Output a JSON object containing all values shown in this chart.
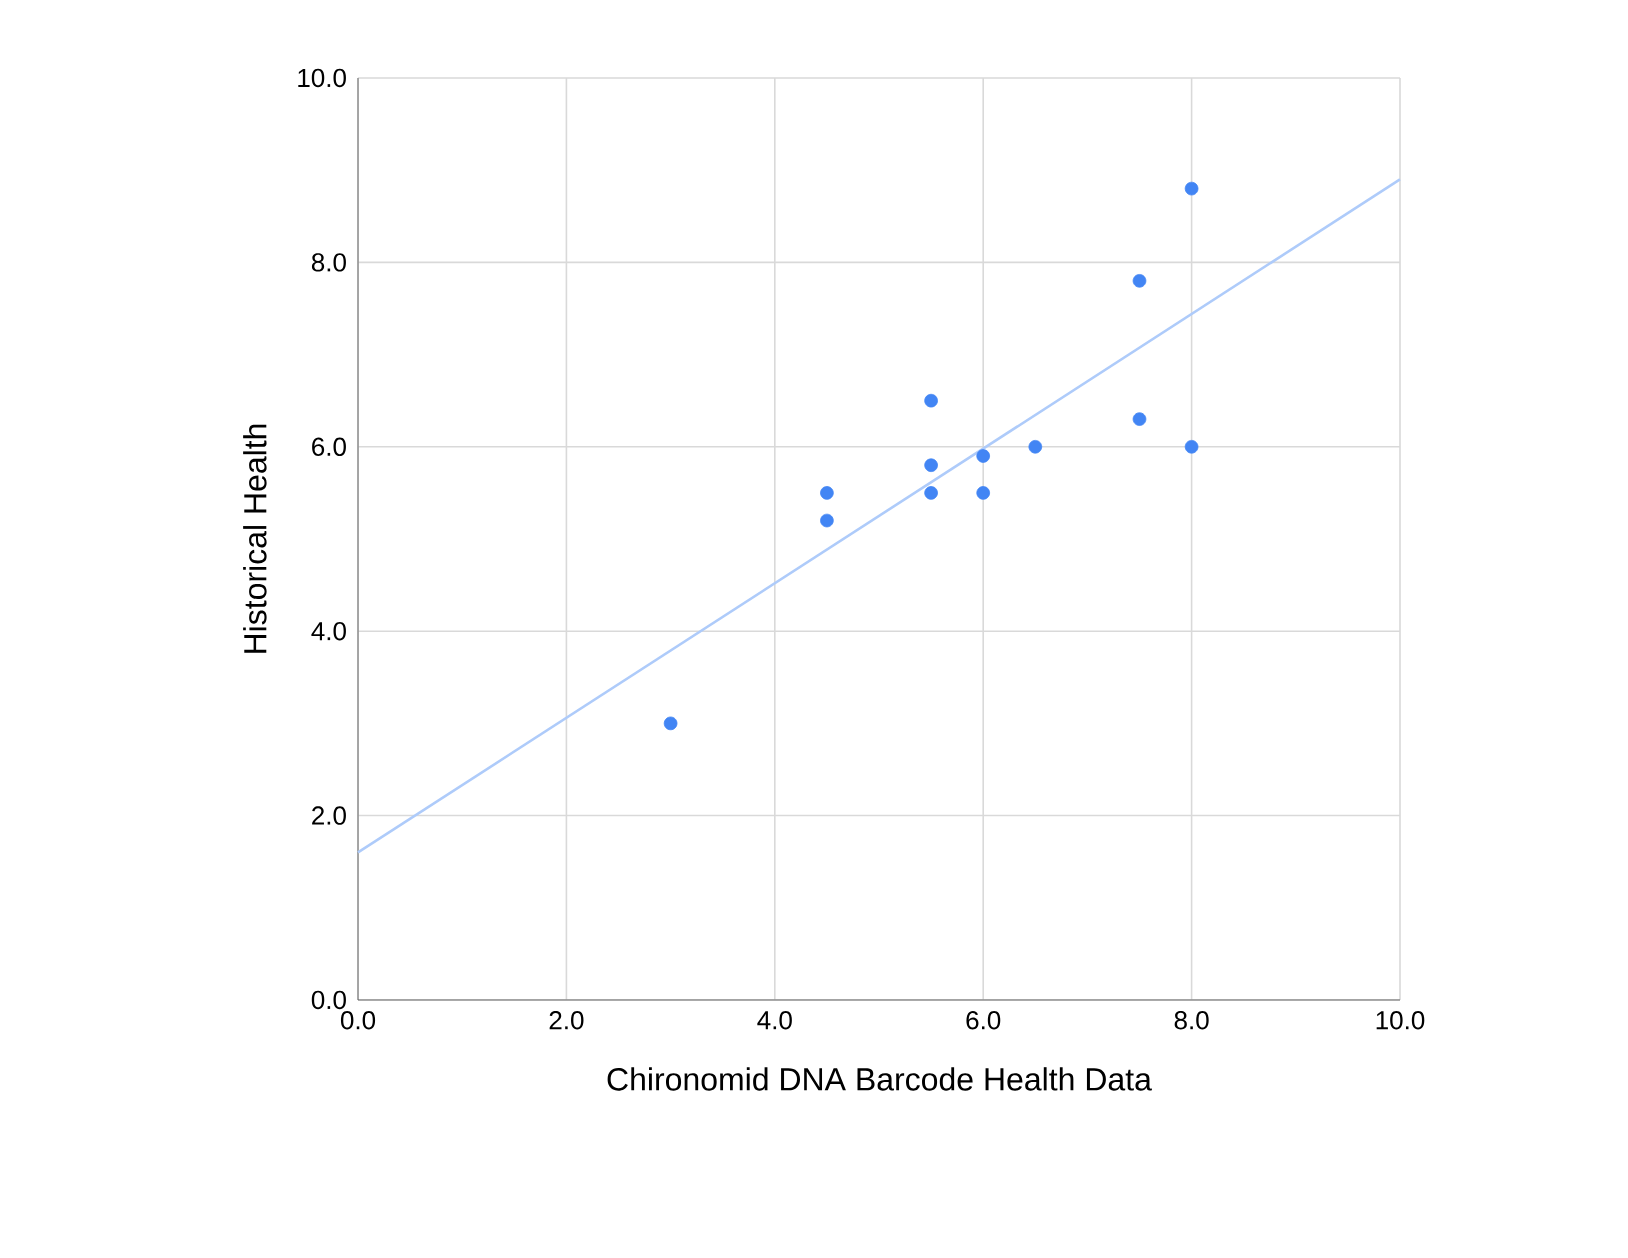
{
  "chart_data": {
    "type": "scatter",
    "xlabel": "Chironomid DNA Barcode Health Data",
    "ylabel": "Historical Health",
    "series": [
      {
        "marker": "circle",
        "color": "#4285f4",
        "x": [
          3.0,
          4.5,
          4.5,
          5.5,
          5.5,
          5.5,
          6.0,
          6.0,
          6.5,
          7.5,
          7.5,
          8.0,
          8.0
        ],
        "values": [
          3.0,
          5.5,
          5.2,
          6.5,
          5.8,
          5.5,
          5.9,
          5.5,
          6.0,
          7.8,
          6.3,
          8.8,
          6.0
        ]
      },
      {
        "type": "line",
        "marker": "none",
        "color": "#aecbfa",
        "x": [
          0,
          10
        ],
        "values": [
          1.6,
          8.9
        ]
      }
    ],
    "xlim": [
      0,
      10
    ],
    "ylim": [
      0,
      10
    ],
    "xticks": [
      {
        "value": 0,
        "label": "0.0"
      },
      {
        "value": 2,
        "label": "2.0"
      },
      {
        "value": 4,
        "label": "4.0"
      },
      {
        "value": 6,
        "label": "6.0"
      },
      {
        "value": 8,
        "label": "8.0"
      },
      {
        "value": 10,
        "label": "10.0"
      }
    ],
    "yticks": [
      {
        "value": 0,
        "label": "0.0"
      },
      {
        "value": 2,
        "label": "2.0"
      },
      {
        "value": 4,
        "label": "4.0"
      },
      {
        "value": 6,
        "label": "6.0"
      },
      {
        "value": 8,
        "label": "8.0"
      },
      {
        "value": 10,
        "label": "10.0"
      }
    ],
    "grid": true
  }
}
